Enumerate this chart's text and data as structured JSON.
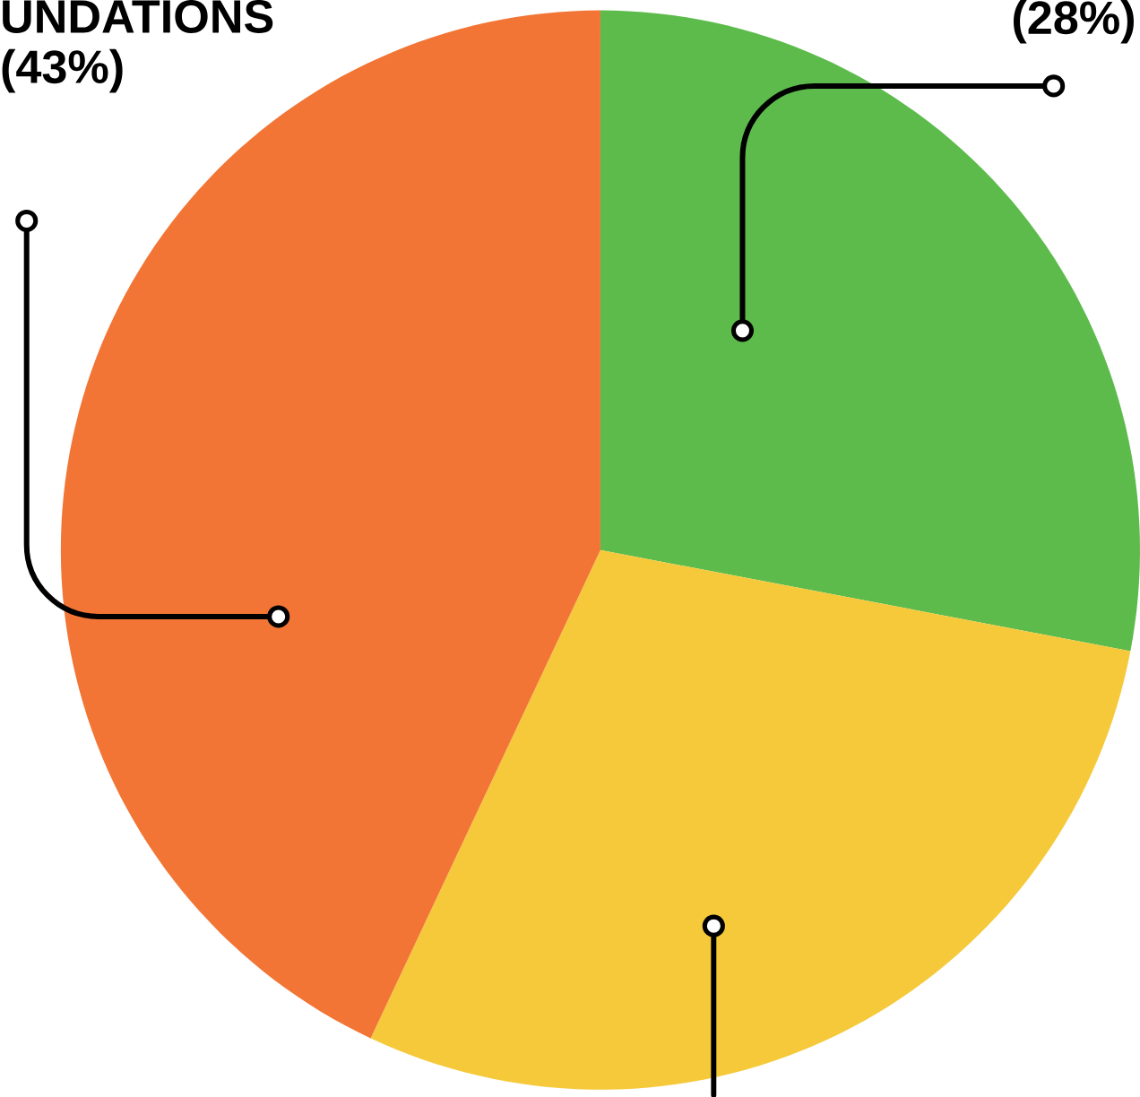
{
  "chart_data": {
    "type": "pie",
    "categories": [
      null,
      null,
      "UNDATIONS"
    ],
    "values": [
      28,
      29,
      43
    ],
    "colors": [
      "#5dbb4c",
      "#f5c93a",
      "#f27535"
    ],
    "value_labels": [
      "(28%)",
      null,
      "(43%)"
    ]
  }
}
